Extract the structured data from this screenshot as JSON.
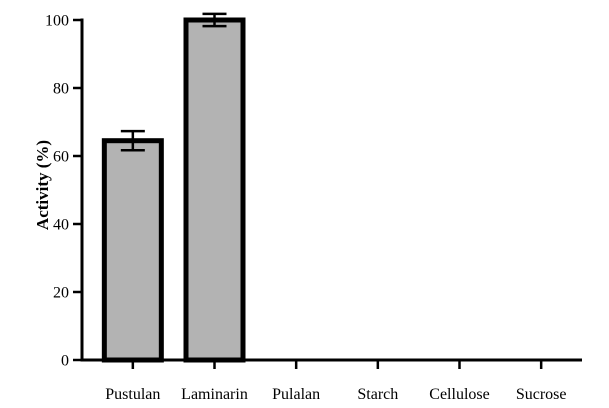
{
  "chart_data": {
    "type": "bar",
    "categories": [
      "Pustulan",
      "Laminarin",
      "Pulalan",
      "Starch",
      "Cellulose",
      "Sucrose"
    ],
    "values": [
      64.5,
      100,
      0,
      0,
      0,
      0
    ],
    "errors": [
      2.8,
      1.8,
      0,
      0,
      0,
      0
    ],
    "xlabel": "",
    "ylabel": "Activity (%)",
    "ylim": [
      0,
      100
    ],
    "yticks": [
      "0",
      "20",
      "40",
      "60",
      "80",
      "100"
    ],
    "grid": false,
    "bar_color": "#b3b3b3",
    "bar_edge_color": "#000000"
  }
}
